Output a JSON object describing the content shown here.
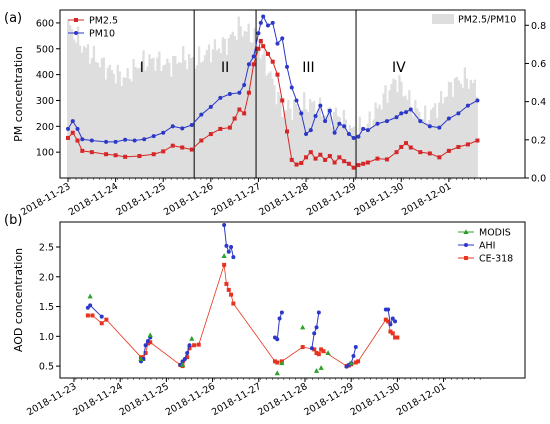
{
  "chart_data": [
    {
      "panel_label": "(a)",
      "type": "line",
      "ylabel": "PM concentration",
      "ylim": [
        0,
        650
      ],
      "yticks": [
        100,
        200,
        300,
        400,
        500,
        600
      ],
      "y2lim": [
        0,
        0.88
      ],
      "y2ticks": [
        "0.0",
        "0.2",
        "0.4",
        "0.6",
        "0.8"
      ],
      "xlim": [
        0,
        9.2
      ],
      "x_ticks": [
        "2018-11-23",
        "2018-11-24",
        "2018-11-25",
        "2018-11-26",
        "2018-11-27",
        "2018-11-28",
        "2018-11-29",
        "2018-11-30",
        "2018-12-01"
      ],
      "phase_dividers": [
        2.65,
        3.95,
        6.05
      ],
      "phases": [
        {
          "label": "I",
          "x": 1.55,
          "y": 410
        },
        {
          "label": "II",
          "x": 3.3,
          "y": 410
        },
        {
          "label": "III",
          "x": 5.05,
          "y": 410
        },
        {
          "label": "IV",
          "x": 6.95,
          "y": 410
        }
      ],
      "legend": [
        "PM2.5",
        "PM10"
      ],
      "legend_right": "PM2.5/PM10",
      "ratio_series": {
        "name": "PM2.5/PM10",
        "color": "#dedede",
        "points": [
          [
            0,
            0.8
          ],
          [
            0.3,
            0.69
          ],
          [
            0.6,
            0.62
          ],
          [
            0.9,
            0.56
          ],
          [
            1.2,
            0.52
          ],
          [
            1.5,
            0.6
          ],
          [
            1.8,
            0.62
          ],
          [
            2.1,
            0.59
          ],
          [
            2.4,
            0.63
          ],
          [
            2.7,
            0.61
          ],
          [
            3.0,
            0.67
          ],
          [
            3.3,
            0.7
          ],
          [
            3.6,
            0.79
          ],
          [
            3.9,
            0.74
          ],
          [
            4.2,
            0.57
          ],
          [
            4.5,
            0.36
          ],
          [
            4.8,
            0.37
          ],
          [
            5.1,
            0.39
          ],
          [
            5.4,
            0.34
          ],
          [
            5.7,
            0.33
          ],
          [
            6.0,
            0.24
          ],
          [
            6.3,
            0.28
          ],
          [
            6.6,
            0.41
          ],
          [
            6.9,
            0.52
          ],
          [
            7.2,
            0.39
          ],
          [
            7.5,
            0.31
          ],
          [
            7.8,
            0.39
          ],
          [
            8.1,
            0.5
          ],
          [
            8.4,
            0.52
          ],
          [
            8.6,
            0.46
          ]
        ]
      },
      "series": [
        {
          "name": "PM2.5",
          "color": "#d62728",
          "marker": "square",
          "points": [
            [
              0,
              155
            ],
            [
              0.1,
              175
            ],
            [
              0.2,
              145
            ],
            [
              0.3,
              105
            ],
            [
              0.5,
              100
            ],
            [
              0.8,
              92
            ],
            [
              1.0,
              88
            ],
            [
              1.2,
              82
            ],
            [
              1.5,
              85
            ],
            [
              1.8,
              92
            ],
            [
              2.0,
              103
            ],
            [
              2.2,
              125
            ],
            [
              2.4,
              118
            ],
            [
              2.6,
              110
            ],
            [
              2.8,
              145
            ],
            [
              3.0,
              170
            ],
            [
              3.2,
              190
            ],
            [
              3.4,
              195
            ],
            [
              3.5,
              230
            ],
            [
              3.6,
              265
            ],
            [
              3.7,
              250
            ],
            [
              3.8,
              330
            ],
            [
              3.9,
              440
            ],
            [
              4.0,
              500
            ],
            [
              4.05,
              530
            ],
            [
              4.1,
              510
            ],
            [
              4.2,
              480
            ],
            [
              4.3,
              450
            ],
            [
              4.4,
              400
            ],
            [
              4.5,
              300
            ],
            [
              4.6,
              180
            ],
            [
              4.7,
              70
            ],
            [
              4.8,
              52
            ],
            [
              4.9,
              58
            ],
            [
              5.0,
              80
            ],
            [
              5.1,
              100
            ],
            [
              5.2,
              75
            ],
            [
              5.3,
              90
            ],
            [
              5.4,
              70
            ],
            [
              5.5,
              85
            ],
            [
              5.6,
              60
            ],
            [
              5.7,
              80
            ],
            [
              5.8,
              65
            ],
            [
              5.9,
              55
            ],
            [
              6.0,
              40
            ],
            [
              6.1,
              50
            ],
            [
              6.2,
              55
            ],
            [
              6.3,
              60
            ],
            [
              6.5,
              75
            ],
            [
              6.7,
              72
            ],
            [
              6.9,
              100
            ],
            [
              7.0,
              120
            ],
            [
              7.1,
              135
            ],
            [
              7.2,
              118
            ],
            [
              7.4,
              100
            ],
            [
              7.6,
              95
            ],
            [
              7.8,
              80
            ],
            [
              8.0,
              105
            ],
            [
              8.2,
              120
            ],
            [
              8.4,
              130
            ],
            [
              8.6,
              145
            ]
          ]
        },
        {
          "name": "PM10",
          "color": "#2b38c8",
          "marker": "circle",
          "points": [
            [
              0,
              190
            ],
            [
              0.1,
              220
            ],
            [
              0.2,
              190
            ],
            [
              0.3,
              150
            ],
            [
              0.5,
              145
            ],
            [
              0.8,
              140
            ],
            [
              1.0,
              140
            ],
            [
              1.2,
              148
            ],
            [
              1.4,
              145
            ],
            [
              1.6,
              150
            ],
            [
              1.8,
              162
            ],
            [
              2.0,
              175
            ],
            [
              2.2,
              200
            ],
            [
              2.4,
              192
            ],
            [
              2.6,
              205
            ],
            [
              2.8,
              245
            ],
            [
              3.0,
              275
            ],
            [
              3.2,
              310
            ],
            [
              3.4,
              325
            ],
            [
              3.6,
              330
            ],
            [
              3.7,
              360
            ],
            [
              3.8,
              440
            ],
            [
              3.9,
              470
            ],
            [
              4.0,
              560
            ],
            [
              4.05,
              600
            ],
            [
              4.1,
              625
            ],
            [
              4.2,
              590
            ],
            [
              4.3,
              600
            ],
            [
              4.4,
              520
            ],
            [
              4.5,
              540
            ],
            [
              4.6,
              430
            ],
            [
              4.7,
              350
            ],
            [
              4.8,
              300
            ],
            [
              4.9,
              250
            ],
            [
              5.0,
              170
            ],
            [
              5.1,
              185
            ],
            [
              5.2,
              240
            ],
            [
              5.3,
              280
            ],
            [
              5.4,
              220
            ],
            [
              5.5,
              260
            ],
            [
              5.6,
              175
            ],
            [
              5.7,
              210
            ],
            [
              5.8,
              200
            ],
            [
              5.9,
              170
            ],
            [
              6.0,
              155
            ],
            [
              6.1,
              160
            ],
            [
              6.2,
              190
            ],
            [
              6.3,
              185
            ],
            [
              6.5,
              210
            ],
            [
              6.7,
              220
            ],
            [
              6.9,
              235
            ],
            [
              7.0,
              250
            ],
            [
              7.1,
              255
            ],
            [
              7.2,
              265
            ],
            [
              7.4,
              220
            ],
            [
              7.6,
              200
            ],
            [
              7.8,
              195
            ],
            [
              8.0,
              230
            ],
            [
              8.2,
              250
            ],
            [
              8.4,
              280
            ],
            [
              8.6,
              300
            ]
          ]
        }
      ]
    },
    {
      "panel_label": "(b)",
      "type": "line",
      "ylabel": "AOD concentration",
      "ylim": [
        0.3,
        2.92
      ],
      "yticks": [
        "0.5",
        "1.0",
        "1.5",
        "2.0",
        "2.5"
      ],
      "xlim": [
        0,
        9.2
      ],
      "x_ticks": [
        "2018-11-23",
        "2018-11-24",
        "2018-11-25",
        "2018-11-26",
        "2018-11-27",
        "2018-11-28",
        "2018-11-29",
        "2018-11-30",
        "2018-12-01"
      ],
      "legend": [
        "MODIS",
        "AHI",
        "CE-318"
      ],
      "series": [
        {
          "name": "MODIS",
          "color": "#2ca02c",
          "marker": "triangle",
          "line": false,
          "points": [
            [
              0.35,
              1.67
            ],
            [
              1.45,
              0.62
            ],
            [
              1.65,
              1.02
            ],
            [
              2.35,
              0.52
            ],
            [
              2.55,
              0.96
            ],
            [
              3.25,
              2.35
            ],
            [
              4.4,
              0.38
            ],
            [
              4.5,
              0.55
            ],
            [
              4.95,
              1.15
            ],
            [
              5.25,
              0.42
            ],
            [
              5.35,
              0.47
            ],
            [
              5.5,
              0.72
            ],
            [
              6.0,
              0.55
            ]
          ]
        },
        {
          "name": "AHI",
          "color": "#2b38c8",
          "marker": "circle",
          "line": true,
          "groups": [
            [
              [
                0.3,
                1.48
              ],
              [
                0.35,
                1.52
              ],
              [
                0.6,
                1.33
              ]
            ],
            [
              [
                1.45,
                0.58
              ],
              [
                1.5,
                0.62
              ],
              [
                1.55,
                0.85
              ],
              [
                1.6,
                0.92
              ],
              [
                1.65,
                0.98
              ]
            ],
            [
              [
                2.3,
                0.52
              ],
              [
                2.35,
                0.58
              ],
              [
                2.4,
                0.62
              ],
              [
                2.45,
                0.72
              ],
              [
                2.5,
                0.85
              ]
            ],
            [
              [
                3.25,
                2.87
              ],
              [
                3.3,
                2.52
              ],
              [
                3.35,
                2.42
              ],
              [
                3.4,
                2.5
              ],
              [
                3.45,
                2.33
              ]
            ],
            [
              [
                4.35,
                0.98
              ],
              [
                4.4,
                0.95
              ],
              [
                4.45,
                1.3
              ],
              [
                4.5,
                1.4
              ]
            ],
            [
              [
                5.15,
                0.8
              ],
              [
                5.2,
                1.05
              ],
              [
                5.25,
                1.15
              ],
              [
                5.3,
                1.4
              ]
            ],
            [
              [
                5.9,
                0.49
              ],
              [
                5.95,
                0.52
              ],
              [
                6.0,
                0.55
              ],
              [
                6.05,
                0.67
              ],
              [
                6.1,
                0.82
              ]
            ],
            [
              [
                6.75,
                1.45
              ],
              [
                6.8,
                1.45
              ],
              [
                6.85,
                1.2
              ],
              [
                6.9,
                1.3
              ],
              [
                6.95,
                1.25
              ]
            ]
          ]
        },
        {
          "name": "CE-318",
          "color": "#e8331e",
          "marker": "square",
          "line": true,
          "points": [
            [
              0.3,
              1.35
            ],
            [
              0.4,
              1.35
            ],
            [
              0.6,
              1.22
            ],
            [
              0.7,
              1.28
            ],
            [
              1.45,
              0.65
            ],
            [
              1.5,
              0.62
            ],
            [
              1.55,
              0.72
            ],
            [
              1.6,
              0.88
            ],
            [
              1.65,
              0.9
            ],
            [
              2.3,
              0.52
            ],
            [
              2.35,
              0.5
            ],
            [
              2.45,
              0.65
            ],
            [
              2.5,
              0.8
            ],
            [
              2.6,
              0.85
            ],
            [
              2.7,
              0.86
            ],
            [
              3.25,
              2.2
            ],
            [
              3.3,
              1.88
            ],
            [
              3.35,
              1.78
            ],
            [
              3.4,
              1.7
            ],
            [
              3.45,
              1.55
            ],
            [
              4.35,
              0.58
            ],
            [
              4.4,
              0.56
            ],
            [
              4.5,
              0.58
            ],
            [
              4.95,
              0.82
            ],
            [
              5.2,
              0.78
            ],
            [
              5.25,
              0.72
            ],
            [
              5.3,
              0.7
            ],
            [
              5.35,
              0.78
            ],
            [
              5.4,
              0.75
            ],
            [
              5.9,
              0.5
            ],
            [
              5.95,
              0.51
            ],
            [
              6.0,
              0.53
            ],
            [
              6.1,
              0.56
            ],
            [
              6.15,
              0.58
            ],
            [
              6.75,
              1.28
            ],
            [
              6.8,
              1.25
            ],
            [
              6.85,
              1.08
            ],
            [
              6.9,
              1.05
            ],
            [
              6.95,
              0.98
            ],
            [
              7.0,
              0.98
            ]
          ]
        }
      ]
    }
  ]
}
